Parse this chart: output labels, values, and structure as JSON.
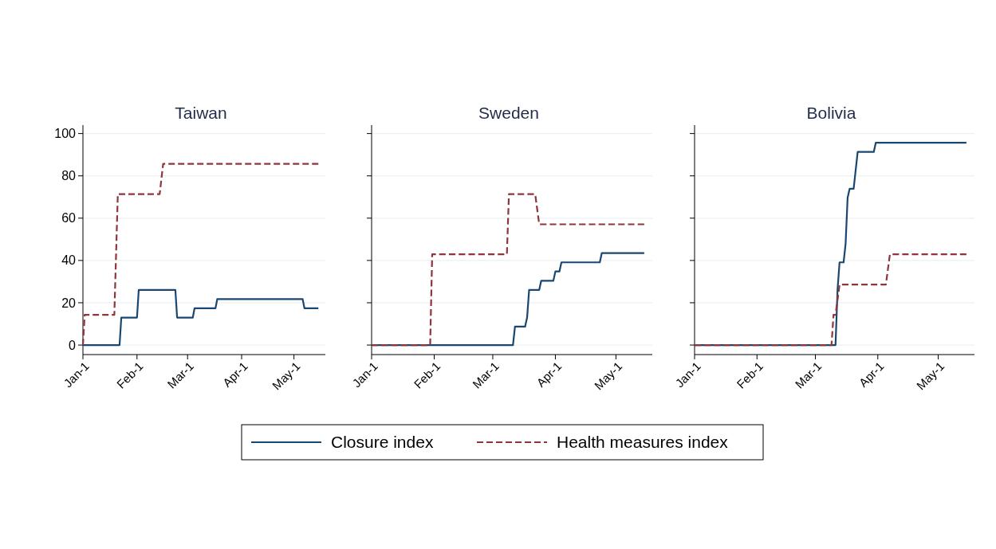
{
  "chart_data": [
    {
      "type": "line",
      "title": "Taiwan",
      "legend": "bottom",
      "grid": "y",
      "xlim": [
        "--01-01",
        "--05-19"
      ],
      "ylim": [
        -4.5,
        104
      ],
      "yticks": [
        0,
        20,
        40,
        60,
        80,
        100
      ],
      "xticks": [
        {
          "value": "--01-01",
          "label": "Jan-1"
        },
        {
          "value": "--02-01",
          "label": "Feb-1"
        },
        {
          "value": "--03-01",
          "label": "Mar-1"
        },
        {
          "value": "--04-01",
          "label": "Apr-1"
        },
        {
          "value": "--05-01",
          "label": "May-1"
        }
      ],
      "series": [
        {
          "name": "Closure index",
          "color": "#1a476f",
          "line_style": "solid",
          "x": [
            "--01-01",
            "--01-22",
            "--01-23",
            "--02-01",
            "--02-02",
            "--02-23",
            "--02-24",
            "--03-04",
            "--03-05",
            "--03-17",
            "--03-18",
            "--05-06",
            "--05-07",
            "--05-15"
          ],
          "values": [
            0,
            0,
            13,
            13,
            26.1,
            26.1,
            13,
            13,
            17.4,
            17.4,
            21.7,
            21.7,
            17.4,
            17.4
          ]
        },
        {
          "name": "Health measures index",
          "color": "#90353b",
          "line_style": "dashed",
          "x": [
            "--01-01",
            "--01-02",
            "--01-19",
            "--01-21",
            "--02-14",
            "--02-16",
            "--05-15"
          ],
          "values": [
            0,
            14.3,
            14.3,
            71.4,
            71.4,
            85.7,
            85.7
          ]
        }
      ]
    },
    {
      "type": "line",
      "title": "Sweden",
      "tick_labels": "x",
      "grid": "y",
      "xlim": [
        "--01-01",
        "--05-19"
      ],
      "ylim": [
        -4.5,
        104
      ],
      "yticks": [
        {
          "value": 0,
          "label": null
        },
        {
          "value": 20,
          "label": null
        },
        {
          "value": 40,
          "label": null
        },
        {
          "value": 60,
          "label": null
        },
        {
          "value": 80,
          "label": null
        },
        {
          "value": 100,
          "label": null
        }
      ],
      "xticks": [
        {
          "value": "--01-01",
          "label": "Jan-1"
        },
        {
          "value": "--02-01",
          "label": "Feb-1"
        },
        {
          "value": "--03-01",
          "label": "Mar-1"
        },
        {
          "value": "--04-01",
          "label": "Apr-1"
        },
        {
          "value": "--05-01",
          "label": "May-1"
        }
      ],
      "series": [
        {
          "color": "#1a476f",
          "line_style": "solid",
          "x": [
            "--01-01",
            "--03-11",
            "--03-12",
            "--03-17",
            "--03-18",
            "--03-19",
            "--03-24",
            "--03-25",
            "--03-31",
            "--04-01",
            "--04-03",
            "--04-04",
            "--04-23",
            "--04-24",
            "--05-15"
          ],
          "values": [
            0,
            0,
            8.7,
            8.7,
            13,
            26.1,
            26.1,
            30.4,
            30.4,
            34.8,
            34.8,
            39.1,
            39.1,
            43.5,
            43.5
          ]
        },
        {
          "color": "#90353b",
          "line_style": "dashed",
          "x": [
            "--01-01",
            "--01-30",
            "--01-31",
            "--03-08",
            "--03-09",
            "--03-22",
            "--03-24",
            "--05-15"
          ],
          "values": [
            0,
            0,
            42.9,
            42.9,
            71.4,
            71.4,
            57.1,
            57.1
          ]
        }
      ]
    },
    {
      "type": "line",
      "title": "Bolivia",
      "tick_labels": "x",
      "grid": "y",
      "xlim": [
        "--01-01",
        "--05-19"
      ],
      "ylim": [
        -4.5,
        104
      ],
      "yticks": [
        {
          "value": 0,
          "label": null
        },
        {
          "value": 20,
          "label": null
        },
        {
          "value": 40,
          "label": null
        },
        {
          "value": 60,
          "label": null
        },
        {
          "value": 80,
          "label": null
        },
        {
          "value": 100,
          "label": null
        }
      ],
      "xticks": [
        {
          "value": "--01-01",
          "label": "Jan-1"
        },
        {
          "value": "--02-01",
          "label": "Feb-1"
        },
        {
          "value": "--03-01",
          "label": "Mar-1"
        },
        {
          "value": "--04-01",
          "label": "Apr-1"
        },
        {
          "value": "--05-01",
          "label": "May-1"
        }
      ],
      "series": [
        {
          "color": "#1a476f",
          "line_style": "solid",
          "x": [
            "--01-01",
            "--03-11",
            "--03-12",
            "--03-13",
            "--03-15",
            "--03-16",
            "--03-17",
            "--03-18",
            "--03-20",
            "--03-22",
            "--03-30",
            "--03-31",
            "--05-15"
          ],
          "values": [
            0,
            0,
            26.1,
            39.1,
            39.1,
            47.8,
            69.6,
            73.9,
            73.9,
            91.3,
            91.3,
            95.7,
            95.7
          ]
        },
        {
          "color": "#90353b",
          "line_style": "dashed",
          "x": [
            "--01-01",
            "--03-09",
            "--03-10",
            "--03-11",
            "--03-13",
            "--04-05",
            "--04-07",
            "--05-15"
          ],
          "values": [
            0,
            0,
            14.3,
            14.3,
            28.6,
            28.6,
            42.9,
            42.9
          ]
        }
      ]
    }
  ]
}
